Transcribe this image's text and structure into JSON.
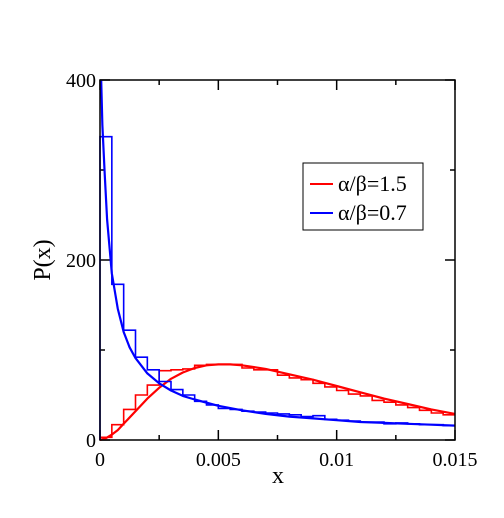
{
  "chart_data": {
    "type": "line",
    "title": "",
    "xlabel": "x",
    "ylabel": "P(x)",
    "xlim": [
      0,
      0.015
    ],
    "ylim": [
      0,
      400
    ],
    "x_ticks": [
      0,
      0.005,
      0.01,
      0.015
    ],
    "x_tick_labels": [
      "0",
      "0.005",
      "0.01",
      "0.015"
    ],
    "y_ticks": [
      0,
      200,
      400
    ],
    "y_tick_labels": [
      "0",
      "200",
      "400"
    ],
    "grid": false,
    "legend_position": "right",
    "series": [
      {
        "name": "α/β=1.5",
        "color": "#ff0000",
        "curve": {
          "x": [
            0,
            0.00025,
            0.0005,
            0.00075,
            0.001,
            0.0015,
            0.002,
            0.0025,
            0.003,
            0.0035,
            0.004,
            0.0045,
            0.005,
            0.0055,
            0.006,
            0.007,
            0.008,
            0.009,
            0.01,
            0.011,
            0.012,
            0.013,
            0.014,
            0.015
          ],
          "y": [
            0,
            2,
            6,
            11,
            18,
            32,
            46,
            58,
            68,
            75,
            80,
            83,
            84,
            84,
            83,
            79,
            73,
            67,
            60,
            53,
            46,
            40,
            34,
            29
          ]
        },
        "histogram": {
          "bin_edges": [
            0,
            0.0005,
            0.001,
            0.0015,
            0.002,
            0.0025,
            0.003,
            0.0035,
            0.004,
            0.0045,
            0.005,
            0.0055,
            0.006,
            0.0065,
            0.007,
            0.0075,
            0.008,
            0.0085,
            0.009,
            0.0095,
            0.01,
            0.0105,
            0.011,
            0.0115,
            0.012,
            0.0125,
            0.013,
            0.0135,
            0.014,
            0.0145,
            0.015
          ],
          "values": [
            3,
            17,
            34,
            50,
            61,
            77,
            78,
            79,
            83,
            84,
            84,
            84,
            80,
            78,
            78,
            72,
            69,
            67,
            63,
            59,
            55,
            51,
            49,
            44,
            42,
            39,
            36,
            33,
            30,
            28
          ]
        }
      },
      {
        "name": "α/β=0.7",
        "color": "#0000ff",
        "curve": {
          "x": [
            5e-05,
            0.0001,
            0.0002,
            0.0003,
            0.0005,
            0.00075,
            0.001,
            0.00125,
            0.0015,
            0.002,
            0.0025,
            0.003,
            0.0035,
            0.004,
            0.005,
            0.006,
            0.007,
            0.008,
            0.009,
            0.01,
            0.011,
            0.012,
            0.013,
            0.014,
            0.015
          ],
          "y": [
            400,
            350,
            295,
            245,
            185,
            146,
            120,
            103,
            91,
            74,
            63,
            55,
            49,
            45,
            38,
            33,
            29,
            26,
            24,
            22,
            20,
            19,
            18,
            17,
            16
          ]
        },
        "histogram": {
          "bin_edges": [
            0,
            0.0005,
            0.001,
            0.0015,
            0.002,
            0.0025,
            0.003,
            0.0035,
            0.004,
            0.0045,
            0.005,
            0.0055,
            0.006,
            0.0065,
            0.007,
            0.0075,
            0.008,
            0.0085,
            0.009,
            0.0095,
            0.01,
            0.0105,
            0.011,
            0.0115,
            0.012,
            0.0125,
            0.013,
            0.0135,
            0.014,
            0.0145,
            0.015
          ],
          "values": [
            337,
            173,
            122,
            92,
            78,
            65,
            56,
            50,
            43,
            39,
            35,
            34,
            32,
            31,
            30,
            29,
            28,
            26,
            27,
            23,
            22,
            21,
            20,
            20,
            18,
            19,
            18,
            17,
            17,
            16
          ]
        }
      }
    ]
  }
}
